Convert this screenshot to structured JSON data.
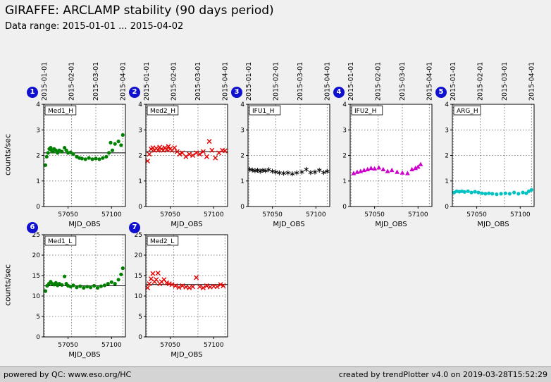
{
  "header": {
    "title": "GIRAFFE: ARCLAMP stability (90 days period)",
    "subtitle": "Data range: 2015-01-01 ... 2015-04-02"
  },
  "axis": {
    "xlabel": "MJD_OBS",
    "xlim": [
      57022,
      57116
    ],
    "xticks": [
      57050,
      57100
    ],
    "dates": [
      {
        "label": "2015-01-01",
        "mjd": 57023
      },
      {
        "label": "2015-02-01",
        "mjd": 57054
      },
      {
        "label": "2015-03-01",
        "mjd": 57082
      },
      {
        "label": "2015-04-01",
        "mjd": 57113
      }
    ]
  },
  "chart_data": [
    {
      "index": 1,
      "label": "Med1_H",
      "type": "scatter",
      "marker": "dot",
      "color": "#008000",
      "ylabel": "counts/sec",
      "xlabel": "MJD_OBS",
      "ylim": [
        0,
        4
      ],
      "yticks": [
        0,
        1,
        2,
        3,
        4
      ],
      "mean": 2.1,
      "show_date_labels": true,
      "x": [
        57024,
        57025.5,
        57027,
        57028.5,
        57030,
        57031,
        57032.5,
        57034,
        57036,
        57038,
        57040,
        57043,
        57046,
        57048,
        57050,
        57053,
        57056,
        57060,
        57063,
        57066,
        57070,
        57074,
        57078,
        57082,
        57086,
        57090,
        57094,
        57097,
        57099,
        57101,
        57104,
        57108,
        57111,
        57113
      ],
      "y": [
        1.62,
        1.95,
        2.1,
        2.25,
        2.3,
        2.2,
        2.15,
        2.25,
        2.2,
        2.1,
        2.2,
        2.15,
        2.3,
        2.2,
        2.1,
        2.12,
        2.05,
        1.95,
        1.9,
        1.88,
        1.85,
        1.9,
        1.85,
        1.88,
        1.85,
        1.9,
        1.95,
        2.1,
        2.5,
        2.2,
        2.45,
        2.55,
        2.4,
        2.8
      ]
    },
    {
      "index": 2,
      "label": "Med2_H",
      "type": "scatter",
      "marker": "x",
      "color": "#e60000",
      "ylabel": "counts/sec",
      "xlabel": "MJD_OBS",
      "ylim": [
        0,
        4
      ],
      "yticks": [
        0,
        1,
        2,
        3,
        4
      ],
      "mean": 2.15,
      "show_date_labels": true,
      "x": [
        57024,
        57026,
        57028,
        57030,
        57032,
        57034,
        57036,
        57038,
        57040,
        57042,
        57044,
        57046,
        57048,
        57050,
        57052,
        57055,
        57058,
        57061,
        57064,
        57068,
        57072,
        57076,
        57080,
        57084,
        57088,
        57092,
        57095,
        57098,
        57102,
        57106,
        57110,
        57113
      ],
      "y": [
        1.78,
        2.05,
        2.25,
        2.3,
        2.2,
        2.28,
        2.2,
        2.32,
        2.25,
        2.2,
        2.3,
        2.22,
        2.35,
        2.25,
        2.2,
        2.3,
        2.15,
        2.05,
        2.1,
        1.95,
        2.05,
        2.0,
        2.1,
        2.05,
        2.15,
        1.95,
        2.55,
        2.2,
        1.9,
        2.1,
        2.2,
        2.18
      ]
    },
    {
      "index": 3,
      "label": "IFU1_H",
      "type": "scatter",
      "marker": "star",
      "color": "#000000",
      "ylabel": "counts/sec",
      "xlabel": "MJD_OBS",
      "ylim": [
        0,
        4
      ],
      "yticks": [
        0,
        1,
        2,
        3,
        4
      ],
      "mean": null,
      "show_date_labels": true,
      "x": [
        57024,
        57027,
        57030,
        57033,
        57036,
        57039,
        57042,
        57046,
        57050,
        57054,
        57058,
        57063,
        57068,
        57073,
        57078,
        57084,
        57089,
        57094,
        57099,
        57104,
        57109,
        57113
      ],
      "y": [
        1.45,
        1.43,
        1.4,
        1.42,
        1.38,
        1.42,
        1.4,
        1.44,
        1.38,
        1.35,
        1.32,
        1.3,
        1.32,
        1.28,
        1.32,
        1.35,
        1.45,
        1.33,
        1.35,
        1.42,
        1.33,
        1.38
      ]
    },
    {
      "index": 4,
      "label": "IFU2_H",
      "type": "scatter",
      "marker": "triangle",
      "color": "#cc00cc",
      "ylabel": "counts/sec",
      "xlabel": "MJD_OBS",
      "ylim": [
        0,
        4
      ],
      "yticks": [
        0,
        1,
        2,
        3,
        4
      ],
      "mean": null,
      "show_date_labels": true,
      "x": [
        57026,
        57030,
        57034,
        57038,
        57042,
        57046,
        57050,
        57055,
        57060,
        57065,
        57070,
        57076,
        57082,
        57088,
        57093,
        57097,
        57100,
        57103
      ],
      "y": [
        1.3,
        1.35,
        1.38,
        1.42,
        1.45,
        1.5,
        1.48,
        1.52,
        1.45,
        1.38,
        1.42,
        1.35,
        1.32,
        1.3,
        1.45,
        1.5,
        1.55,
        1.65
      ]
    },
    {
      "index": 5,
      "label": "ARG_H",
      "type": "scatter",
      "marker": "dot",
      "color": "#00c2c2",
      "ylabel": "counts/sec",
      "xlabel": "MJD_OBS",
      "ylim": [
        0,
        4
      ],
      "yticks": [
        0,
        1,
        2,
        3,
        4
      ],
      "mean": null,
      "show_date_labels": true,
      "x": [
        57024,
        57027,
        57030,
        57033,
        57036,
        57040,
        57044,
        57048,
        57052,
        57056,
        57060,
        57064,
        57068,
        57073,
        57078,
        57083,
        57088,
        57093,
        57098,
        57103,
        57107,
        57110,
        57113
      ],
      "y": [
        0.55,
        0.6,
        0.58,
        0.6,
        0.57,
        0.6,
        0.55,
        0.58,
        0.55,
        0.52,
        0.5,
        0.52,
        0.5,
        0.48,
        0.5,
        0.52,
        0.5,
        0.55,
        0.5,
        0.55,
        0.52,
        0.6,
        0.65
      ]
    },
    {
      "index": 6,
      "label": "Med1_L",
      "type": "scatter",
      "marker": "dot",
      "color": "#008000",
      "ylabel": "counts/sec",
      "xlabel": "MJD_OBS",
      "ylim": [
        0,
        25
      ],
      "yticks": [
        0,
        5,
        10,
        15,
        20,
        25
      ],
      "mean": 12.5,
      "show_date_labels": false,
      "x": [
        57024,
        57026,
        57028,
        57030,
        57032,
        57034,
        57036,
        57038,
        57040,
        57043,
        57046,
        57048,
        57050,
        57053,
        57056,
        57060,
        57064,
        57068,
        57072,
        57076,
        57080,
        57084,
        57088,
        57092,
        57096,
        57100,
        57104,
        57108,
        57111,
        57113
      ],
      "y": [
        11.2,
        12.5,
        13.0,
        13.5,
        13.0,
        12.8,
        13.2,
        12.6,
        13.0,
        12.7,
        14.8,
        13.0,
        12.5,
        12.3,
        12.6,
        12.1,
        12.4,
        12.0,
        12.3,
        12.1,
        12.5,
        12.0,
        12.4,
        12.6,
        13.0,
        13.4,
        13.0,
        14.0,
        15.3,
        16.8
      ]
    },
    {
      "index": 7,
      "label": "Med2_L",
      "type": "scatter",
      "marker": "x",
      "color": "#e60000",
      "ylabel": "counts/sec",
      "xlabel": "MJD_OBS",
      "ylim": [
        0,
        25
      ],
      "yticks": [
        0,
        5,
        10,
        15,
        20,
        25
      ],
      "mean": 12.8,
      "show_date_labels": false,
      "x": [
        57024,
        57026,
        57028,
        57030,
        57032,
        57034,
        57036,
        57038,
        57040,
        57043,
        57046,
        57049,
        57052,
        57056,
        57060,
        57064,
        57068,
        57072,
        57076,
        57080,
        57084,
        57088,
        57092,
        57096,
        57100,
        57104,
        57108,
        57111
      ],
      "y": [
        12.0,
        13.0,
        14.2,
        15.5,
        13.5,
        14.0,
        15.6,
        13.0,
        13.5,
        14.0,
        13.2,
        13.0,
        12.8,
        12.5,
        12.1,
        12.5,
        12.2,
        12.0,
        12.3,
        14.5,
        12.3,
        12.0,
        12.5,
        12.2,
        12.4,
        12.3,
        12.8,
        12.5
      ]
    }
  ],
  "footer": {
    "left": "powered by QC: www.eso.org/HC",
    "right": "created by trendPlotter v4.0 on 2019-03-28T15:52:29"
  }
}
